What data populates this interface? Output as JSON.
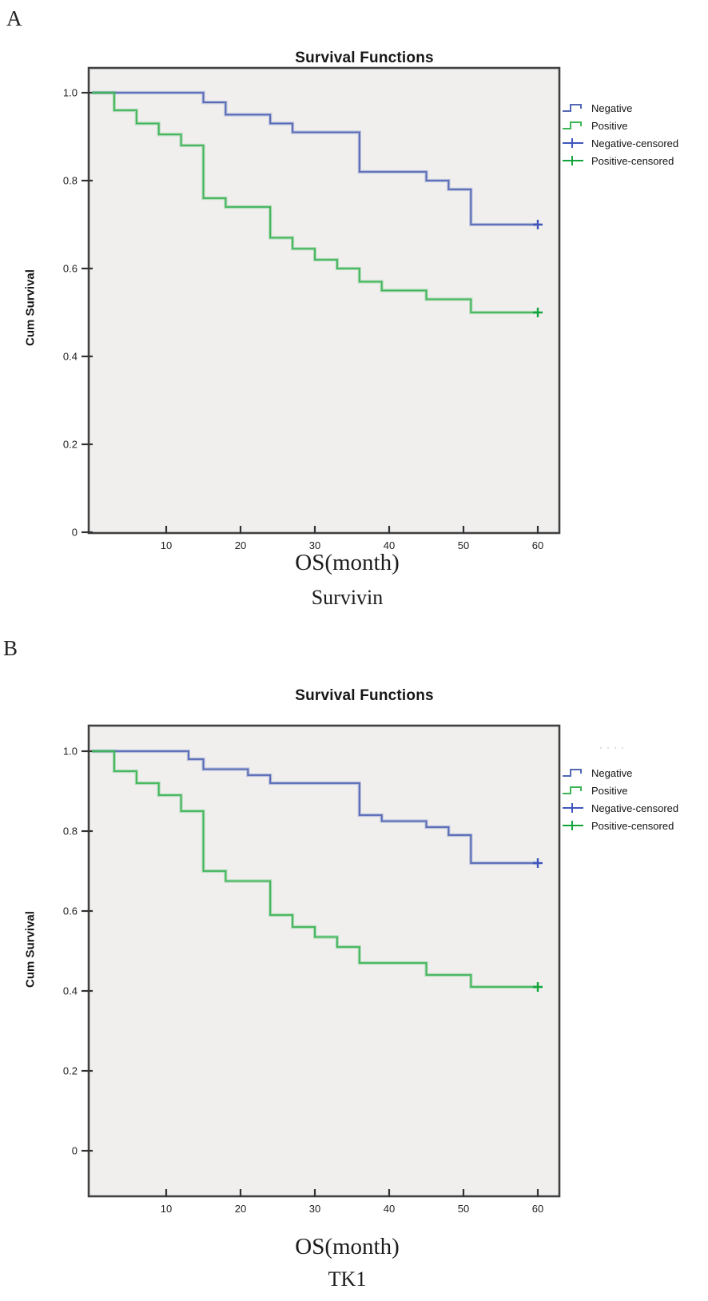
{
  "figure": {
    "description": "Two SPSS Kaplan-Meier overall survival plots",
    "background": "#ffffff",
    "plot_background": "#f0efee",
    "frame_color": "#404040"
  },
  "chart_data": [
    {
      "type": "line",
      "subtype": "kaplan-meier-step",
      "panel": "A",
      "title": "Survival Functions",
      "xlabel": "OS(month)",
      "ylabel": "Cum Survival",
      "marker_label": "Survivin",
      "xlim": [
        0,
        63
      ],
      "ylim": [
        0,
        1.05
      ],
      "x_ticks": [
        10,
        20,
        30,
        40,
        50,
        60
      ],
      "y_tick_labels": [
        "1.0",
        "0.8",
        "0.6",
        "0.4",
        "0.2",
        "0"
      ],
      "grid": false,
      "legend_position": "right",
      "series": [
        {
          "name": "Negative",
          "color": "#5367b5",
          "steps": [
            [
              0,
              1.0
            ],
            [
              15,
              0.978
            ],
            [
              18,
              0.95
            ],
            [
              24,
              0.93
            ],
            [
              27,
              0.91
            ],
            [
              36,
              0.82
            ],
            [
              45,
              0.8
            ],
            [
              48,
              0.78
            ],
            [
              51,
              0.7
            ]
          ],
          "end_x": 60
        },
        {
          "name": "Positive",
          "color": "#3db456",
          "steps": [
            [
              0,
              1.0
            ],
            [
              3,
              0.96
            ],
            [
              6,
              0.93
            ],
            [
              9,
              0.905
            ],
            [
              12,
              0.88
            ],
            [
              15,
              0.76
            ],
            [
              18,
              0.74
            ],
            [
              24,
              0.67
            ],
            [
              27,
              0.645
            ],
            [
              30,
              0.62
            ],
            [
              33,
              0.6
            ],
            [
              36,
              0.57
            ],
            [
              39,
              0.55
            ],
            [
              45,
              0.53
            ],
            [
              51,
              0.5
            ]
          ],
          "end_x": 60
        },
        {
          "name": "Negative-censored",
          "color": "#3f55bb",
          "marker": "plus",
          "points": [
            [
              60,
              0.7
            ]
          ]
        },
        {
          "name": "Positive-censored",
          "color": "#13a53c",
          "marker": "plus",
          "points": [
            [
              60,
              0.5
            ]
          ]
        }
      ]
    },
    {
      "type": "line",
      "subtype": "kaplan-meier-step",
      "panel": "B",
      "title": "Survival Functions",
      "xlabel": "OS(month)",
      "ylabel": "Cum Survival",
      "marker_label": "TK1",
      "legend_artifact": "····",
      "xlim": [
        0,
        63
      ],
      "ylim": [
        0,
        1.05
      ],
      "x_ticks": [
        10,
        20,
        30,
        40,
        50,
        60
      ],
      "y_tick_labels": [
        "1.0",
        "0.8",
        "0.6",
        "0.4",
        "0.2",
        "0"
      ],
      "grid": false,
      "legend_position": "right",
      "series": [
        {
          "name": "Negative",
          "color": "#5367b5",
          "steps": [
            [
              0,
              1.0
            ],
            [
              13,
              0.98
            ],
            [
              15,
              0.955
            ],
            [
              21,
              0.94
            ],
            [
              24,
              0.92
            ],
            [
              36,
              0.84
            ],
            [
              39,
              0.825
            ],
            [
              45,
              0.81
            ],
            [
              48,
              0.79
            ],
            [
              51,
              0.72
            ]
          ],
          "end_x": 60
        },
        {
          "name": "Positive",
          "color": "#3db456",
          "steps": [
            [
              0,
              1.0
            ],
            [
              3,
              0.95
            ],
            [
              6,
              0.92
            ],
            [
              9,
              0.89
            ],
            [
              12,
              0.85
            ],
            [
              15,
              0.7
            ],
            [
              18,
              0.675
            ],
            [
              24,
              0.59
            ],
            [
              27,
              0.56
            ],
            [
              30,
              0.535
            ],
            [
              33,
              0.51
            ],
            [
              36,
              0.47
            ],
            [
              45,
              0.44
            ],
            [
              51,
              0.41
            ]
          ],
          "end_x": 60
        },
        {
          "name": "Negative-censored",
          "color": "#3f55bb",
          "marker": "plus",
          "points": [
            [
              60,
              0.72
            ]
          ]
        },
        {
          "name": "Positive-censored",
          "color": "#13a53c",
          "marker": "plus",
          "points": [
            [
              60,
              0.41
            ]
          ]
        }
      ]
    }
  ]
}
